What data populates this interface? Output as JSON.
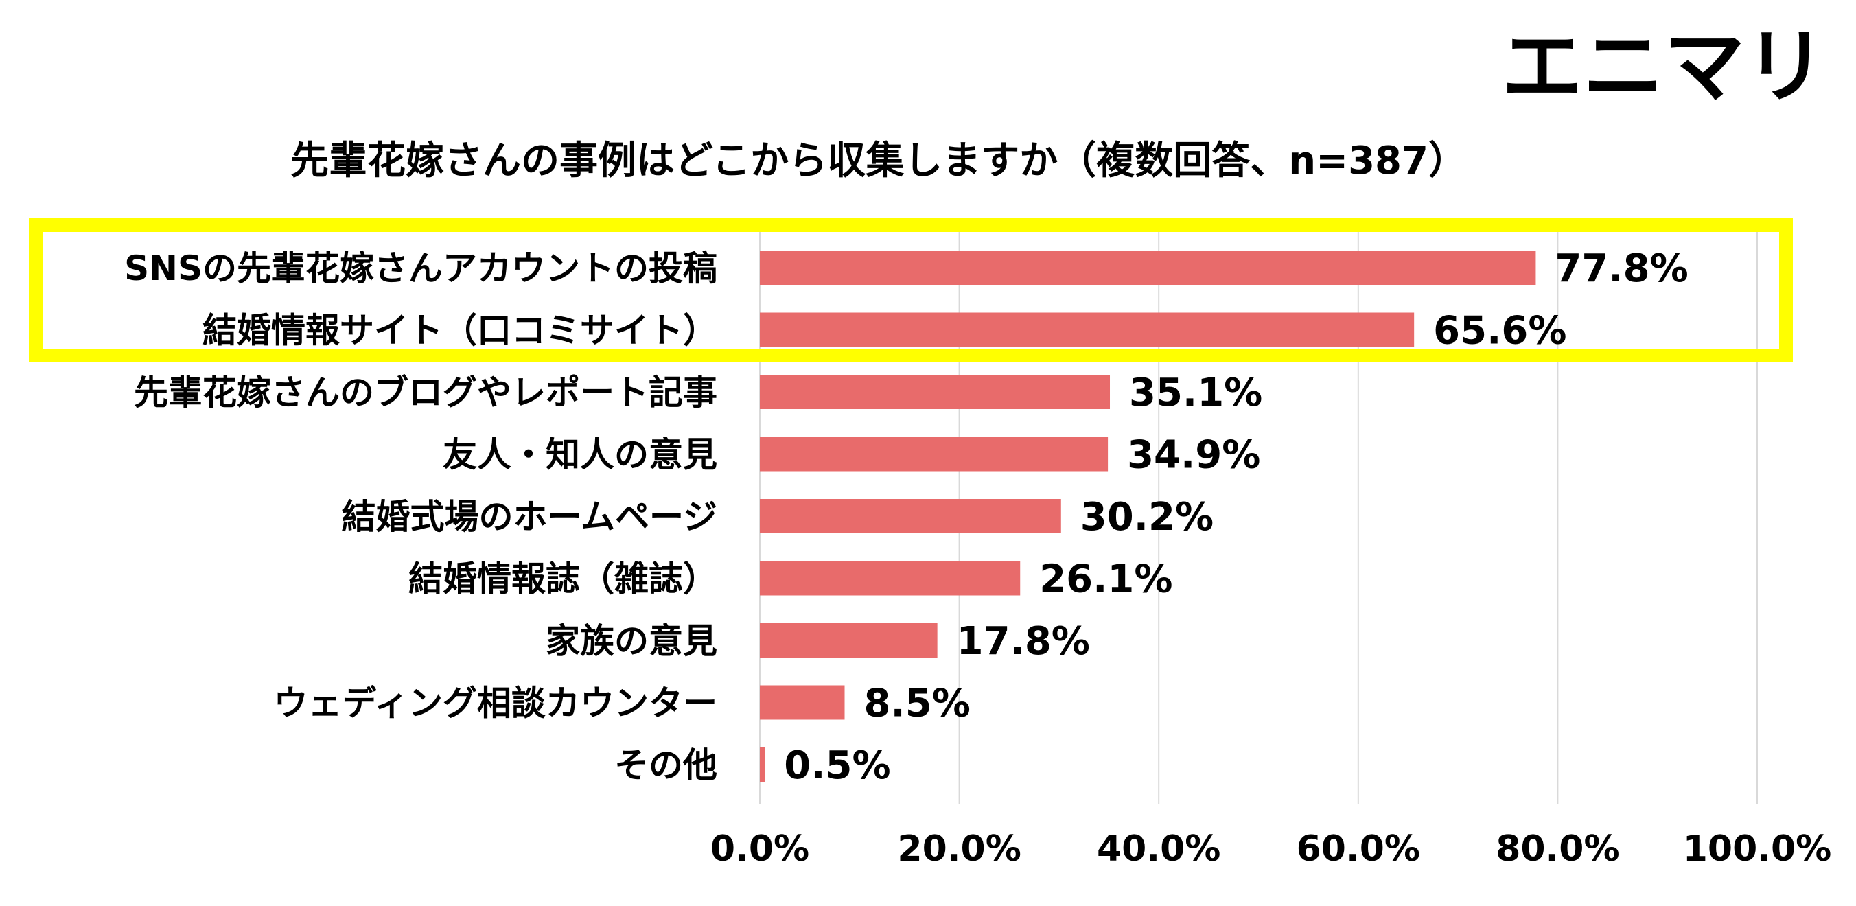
{
  "brand": "エニマリ",
  "chart_data": {
    "type": "bar",
    "orientation": "horizontal",
    "title": "先輩花嫁さんの事例はどこから収集しますか（複数回答、n=387）",
    "categories": [
      "SNSの先輩花嫁さんアカウントの投稿",
      "結婚情報サイト（口コミサイト）",
      "先輩花嫁さんのブログやレポート記事",
      "友人・知人の意見",
      "結婚式場のホームページ",
      "結婚情報誌（雑誌）",
      "家族の意見",
      "ウェディング相談カウンター",
      "その他"
    ],
    "values": [
      77.8,
      65.6,
      35.1,
      34.9,
      30.2,
      26.1,
      17.8,
      8.5,
      0.5
    ],
    "value_labels": [
      "77.8%",
      "65.6%",
      "35.1%",
      "34.9%",
      "30.2%",
      "26.1%",
      "17.8%",
      "8.5%",
      "0.5%"
    ],
    "xlim": [
      0,
      100
    ],
    "xticks": [
      "0.0%",
      "20.0%",
      "40.0%",
      "60.0%",
      "80.0%",
      "100.0%"
    ],
    "grid": true,
    "highlighted_categories": [
      0,
      1
    ],
    "colors": {
      "bar": "#e86b6b",
      "highlight": "#ffff00",
      "grid": "#d9d9d9",
      "text": "#000000"
    }
  }
}
